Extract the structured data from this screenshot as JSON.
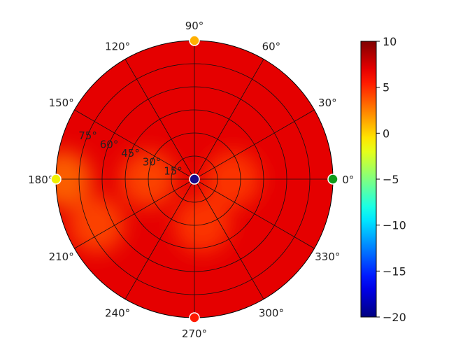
{
  "chart_data": {
    "type": "heatmap",
    "projection": "polar",
    "title": "",
    "angular_tick_labels": [
      "0°",
      "30°",
      "60°",
      "90°",
      "120°",
      "150°",
      "180°",
      "210°",
      "240°",
      "270°",
      "300°",
      "330°"
    ],
    "angular_ticks_deg": [
      0,
      30,
      60,
      90,
      120,
      150,
      180,
      210,
      240,
      270,
      300,
      330
    ],
    "radial_tick_labels": [
      "15°",
      "30°",
      "45°",
      "60°",
      "75°"
    ],
    "radial_ticks": [
      15,
      30,
      45,
      60,
      75
    ],
    "rlim": [
      0,
      90
    ],
    "grid": true,
    "colormap": "jet",
    "colorbar": {
      "range": [
        -20,
        10
      ],
      "ticks": [
        10,
        5,
        0,
        -5,
        -10,
        -15,
        -20
      ],
      "tick_labels": [
        "10",
        "5",
        "0",
        "−5",
        "−10",
        "−15",
        "−20"
      ],
      "placement": "right"
    },
    "field_description_points": [
      {
        "theta": 0,
        "r": 0,
        "value": -20
      },
      {
        "theta": 0,
        "r": 25,
        "value": 4.5
      },
      {
        "theta": 180,
        "r": 30,
        "value": 4.0
      },
      {
        "theta": 280,
        "r": 30,
        "value": 4.5
      },
      {
        "theta": 180,
        "r": 85,
        "value": 3.0
      },
      {
        "theta": 205,
        "r": 70,
        "value": 4.0
      }
    ],
    "markers": [
      {
        "theta": 0,
        "r": 0,
        "value": -20,
        "color": "#1a0a8c"
      },
      {
        "theta": 0,
        "r": 90,
        "value": -4.5,
        "color": "#109a1a"
      },
      {
        "theta": 90,
        "r": 90,
        "value": 2.5,
        "color": "#ffb000"
      },
      {
        "theta": 180,
        "r": 90,
        "value": 0.5,
        "color": "#f0f000"
      },
      {
        "theta": 270,
        "r": 90,
        "value": 8.5,
        "color": "#ff1a00"
      }
    ],
    "background_value": 7
  }
}
